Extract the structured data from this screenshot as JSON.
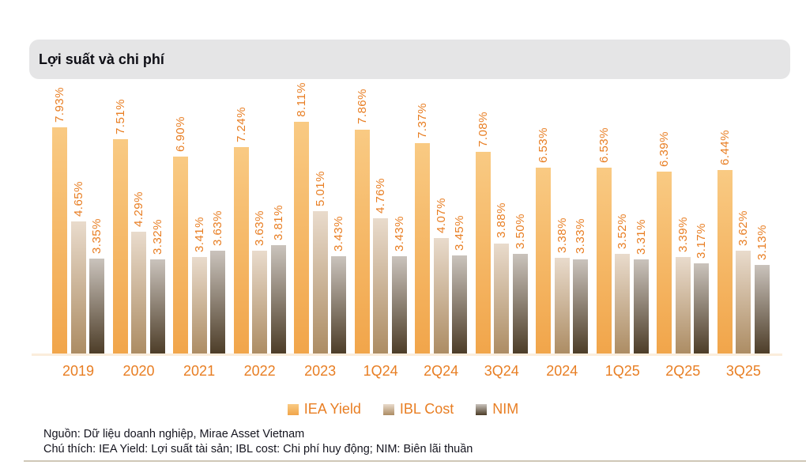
{
  "chart": {
    "title": "Lợi suất và chi phí"
  },
  "chart_data": {
    "type": "bar",
    "title": "Lợi suất và chi phí",
    "categories": [
      "2019",
      "2020",
      "2021",
      "2022",
      "2023",
      "1Q24",
      "2Q24",
      "3Q24",
      "2024",
      "1Q25",
      "2Q25",
      "3Q25"
    ],
    "series": [
      {
        "name": "IEA Yield",
        "values": [
          7.93,
          7.51,
          6.9,
          7.24,
          8.11,
          7.86,
          7.37,
          7.08,
          6.53,
          6.53,
          6.39,
          6.44
        ],
        "labels": [
          "7.93%",
          "7.51%",
          "6.90%",
          "7.24%",
          "8.11%",
          "7.86%",
          "7.37%",
          "7.08%",
          "6.53%",
          "6.53%",
          "6.39%",
          "6.44%"
        ],
        "color_top": "#F9CA83",
        "color_bottom": "#F1A54A"
      },
      {
        "name": "IBL Cost",
        "values": [
          4.65,
          4.29,
          3.41,
          3.63,
          5.01,
          4.76,
          4.07,
          3.88,
          3.38,
          3.52,
          3.39,
          3.62
        ],
        "labels": [
          "4.65%",
          "4.29%",
          "3.41%",
          "3.63%",
          "5.01%",
          "4.76%",
          "4.07%",
          "3.88%",
          "3.38%",
          "3.52%",
          "3.39%",
          "3.62%"
        ],
        "color_top": "#E9DBCC",
        "color_bottom": "#AC8C63"
      },
      {
        "name": "NIM",
        "values": [
          3.35,
          3.32,
          3.63,
          3.81,
          3.43,
          3.43,
          3.45,
          3.5,
          3.33,
          3.31,
          3.17,
          3.13
        ],
        "labels": [
          "3.35%",
          "3.32%",
          "3.63%",
          "3.81%",
          "3.43%",
          "3.43%",
          "3.45%",
          "3.50%",
          "3.33%",
          "3.31%",
          "3.17%",
          "3.13%"
        ],
        "color_top": "#CAC3BC",
        "color_bottom": "#4C3C27"
      }
    ],
    "ylim": [
      0,
      8.5
    ],
    "grid": false,
    "legend_position": "bottom",
    "value_label_color": "#E87E23",
    "axis_label_color": "#E87E23",
    "baseline_color": "#FBEDDC"
  },
  "footer": {
    "source": "Nguồn: Dữ liệu doanh nghiệp, Mirae Asset Vietnam",
    "note": "Chú thích: IEA Yield: Lợi suất tài sản; IBL cost: Chi phí huy động; NIM: Biên lãi thuần"
  }
}
